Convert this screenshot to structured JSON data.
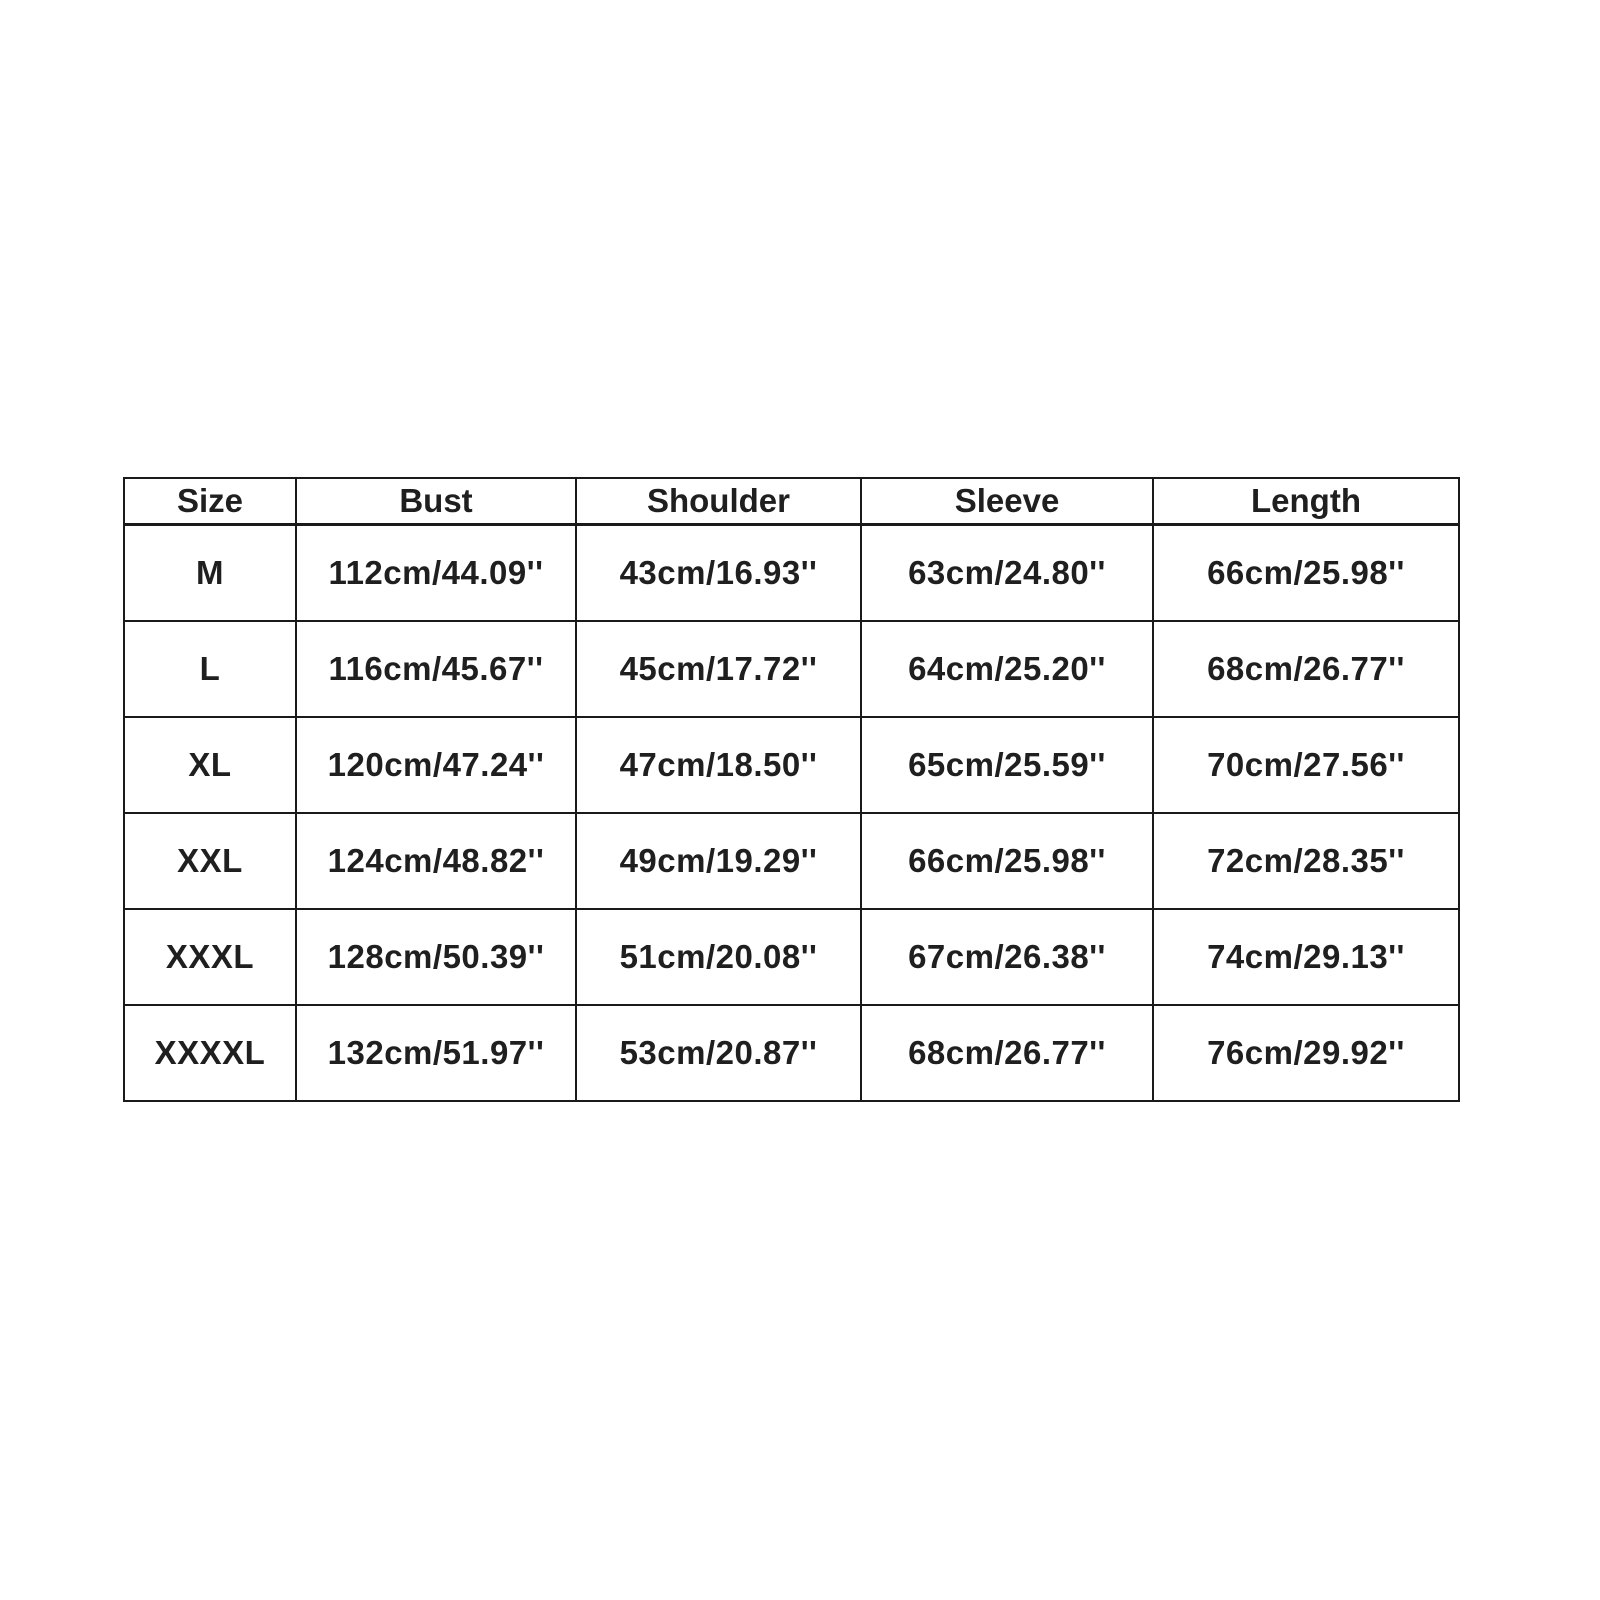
{
  "table": {
    "title": "size-chart",
    "columns": [
      "Size",
      "Bust",
      "Shoulder",
      "Sleeve",
      "Length"
    ],
    "rows": [
      [
        "M",
        "112cm/44.09''",
        "43cm/16.93''",
        "63cm/24.80''",
        "66cm/25.98''"
      ],
      [
        "L",
        "116cm/45.67''",
        "45cm/17.72''",
        "64cm/25.20''",
        "68cm/26.77''"
      ],
      [
        "XL",
        "120cm/47.24''",
        "47cm/18.50''",
        "65cm/25.59''",
        "70cm/27.56''"
      ],
      [
        "XXL",
        "124cm/48.82''",
        "49cm/19.29''",
        "66cm/25.98''",
        "72cm/28.35''"
      ],
      [
        "XXXL",
        "128cm/50.39''",
        "51cm/20.08''",
        "67cm/26.38''",
        "74cm/29.13''"
      ],
      [
        "XXXXL",
        "132cm/51.97''",
        "53cm/20.87''",
        "68cm/26.77''",
        "76cm/29.92''"
      ]
    ],
    "colors": {
      "text": "#1f1f1f",
      "border": "#1a1a1a",
      "background": "#ffffff"
    }
  }
}
